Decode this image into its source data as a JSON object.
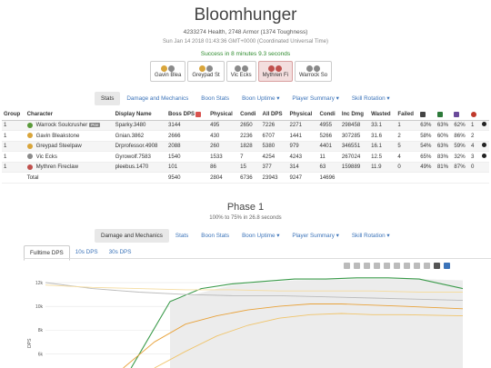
{
  "header": {
    "title": "Bloomhunger",
    "health_line": "4233274 Health, 2748 Armor (1374 Toughness)",
    "date_line": "Sun Jan 14 2018 01:43:36 GMT+0000 (Coordinated Universal Time)",
    "success_line": "Success in 8 minutes 9.3 seconds"
  },
  "players": [
    {
      "name": "Gavin Blea",
      "active": false
    },
    {
      "name": "Greypad St",
      "active": false
    },
    {
      "name": "Vic Ecks",
      "active": false
    },
    {
      "name": "Mythren Fi",
      "active": true
    },
    {
      "name": "Warrock So",
      "active": false
    }
  ],
  "top_tabs": [
    {
      "label": "Stats",
      "active": true
    },
    {
      "label": "Damage and Mechanics",
      "active": false
    },
    {
      "label": "Boon Stats",
      "active": false
    },
    {
      "label": "Boon Uptime ▾",
      "active": false
    },
    {
      "label": "Player Summary ▾",
      "active": false
    },
    {
      "label": "Skill Rotation ▾",
      "active": false
    }
  ],
  "stats_table": {
    "headers": [
      "Group",
      "Character",
      "Display Name",
      "Boss DPS",
      "Physical",
      "Condi",
      "All DPS",
      "Physical",
      "Condi",
      "Inc Dmg",
      "Wasted",
      "Failed"
    ],
    "rows": [
      {
        "group": "1",
        "character": "Warrock Soulcrusher",
        "tag": "Pov",
        "display": "Sparky.3480",
        "boss_dps": "3144",
        "phys": "495",
        "condi": "2650",
        "all_dps": "7226",
        "all_phys": "2271",
        "all_condi": "4955",
        "inc": "298458",
        "wasted": "33.1",
        "failed": "1",
        "p1": "63%",
        "p2": "63%",
        "p3": "62%",
        "deaths": "1",
        "dead": true,
        "color": "#5a9a3a"
      },
      {
        "group": "1",
        "character": "Gavin Bleakstone",
        "tag": "",
        "display": "Gnian.3862",
        "boss_dps": "2666",
        "phys": "430",
        "condi": "2236",
        "all_dps": "6707",
        "all_phys": "1441",
        "all_condi": "5266",
        "inc": "307285",
        "wasted": "31.6",
        "failed": "2",
        "p1": "58%",
        "p2": "60%",
        "p3": "86%",
        "deaths": "2",
        "dead": false,
        "color": "#d9a53a"
      },
      {
        "group": "1",
        "character": "Greypad Steelpaw",
        "tag": "",
        "display": "Drprofessor.4908",
        "boss_dps": "2088",
        "phys": "260",
        "condi": "1828",
        "all_dps": "5380",
        "all_phys": "979",
        "all_condi": "4401",
        "inc": "346551",
        "wasted": "16.1",
        "failed": "5",
        "p1": "54%",
        "p2": "63%",
        "p3": "59%",
        "deaths": "4",
        "dead": true,
        "color": "#d9a53a"
      },
      {
        "group": "1",
        "character": "Vic Ecks",
        "tag": "",
        "display": "Gyrowolf.7583",
        "boss_dps": "1540",
        "phys": "1533",
        "condi": "7",
        "all_dps": "4254",
        "all_phys": "4243",
        "all_condi": "11",
        "inc": "267024",
        "wasted": "12.5",
        "failed": "4",
        "p1": "65%",
        "p2": "83%",
        "p3": "32%",
        "deaths": "3",
        "dead": true,
        "color": "#8a8a8a"
      },
      {
        "group": "1",
        "character": "Mythren Fireclaw",
        "tag": "",
        "display": "pleebus.1470",
        "boss_dps": "101",
        "phys": "86",
        "condi": "15",
        "all_dps": "377",
        "all_phys": "314",
        "all_condi": "63",
        "inc": "159889",
        "wasted": "11.9",
        "failed": "0",
        "p1": "49%",
        "p2": "81%",
        "p3": "87%",
        "deaths": "0",
        "dead": false,
        "color": "#c0504d"
      }
    ],
    "total": {
      "label": "Total",
      "boss_dps": "9540",
      "phys": "2804",
      "condi": "6736",
      "all_dps": "23943",
      "all_phys": "9247",
      "all_condi": "14696"
    }
  },
  "phase": {
    "title": "Phase 1",
    "subtitle": "100% to 75% in 26.8 seconds"
  },
  "phase_tabs": [
    {
      "label": "Damage and Mechanics",
      "active": true
    },
    {
      "label": "Stats",
      "active": false
    },
    {
      "label": "Boon Stats",
      "active": false
    },
    {
      "label": "Boon Uptime ▾",
      "active": false
    },
    {
      "label": "Player Summary ▾",
      "active": false
    },
    {
      "label": "Skill Rotation ▾",
      "active": false
    }
  ],
  "dps_tabs": [
    {
      "label": "Fulltime DPS",
      "active": true
    },
    {
      "label": "10s DPS",
      "active": false
    },
    {
      "label": "30s DPS",
      "active": false
    }
  ],
  "chart_data": {
    "type": "line",
    "ylabel": "DPS",
    "yticks": [
      "12k",
      "10k",
      "8k",
      "6k"
    ],
    "ylim": [
      4800,
      13000
    ],
    "xlim": [
      0,
      26.8
    ],
    "series": [
      {
        "color": "#3a9a4a",
        "x": [
          5.5,
          8,
          10,
          12,
          14,
          16,
          18,
          20,
          22,
          24,
          26.8
        ],
        "y": [
          4800,
          10400,
          11500,
          11900,
          12100,
          12300,
          12300,
          12400,
          12400,
          12300,
          11500
        ]
      },
      {
        "color": "#e8a23a",
        "x": [
          5,
          7,
          9,
          11,
          13,
          15,
          17,
          19,
          21,
          23,
          26.8
        ],
        "y": [
          4800,
          7000,
          8500,
          9200,
          9700,
          10000,
          10200,
          10200,
          10100,
          10000,
          9800
        ]
      },
      {
        "color": "#f0c46a",
        "x": [
          7,
          9,
          11,
          13,
          15,
          17,
          19,
          21,
          23,
          26.8
        ],
        "y": [
          4800,
          6200,
          7500,
          8400,
          9000,
          9300,
          9400,
          9300,
          9300,
          9200
        ]
      },
      {
        "color": "#bbbbbb",
        "x": [
          0,
          3,
          6,
          9,
          12,
          15,
          18,
          21,
          24,
          26.8
        ],
        "y": [
          12000,
          11500,
          11200,
          11000,
          10900,
          10900,
          10800,
          10700,
          10600,
          10500
        ]
      },
      {
        "color": "#f5dca0",
        "x": [
          0,
          3,
          6,
          9,
          12,
          15,
          18,
          21,
          24,
          26.8
        ],
        "y": [
          11800,
          11600,
          11500,
          11400,
          11400,
          11300,
          11300,
          11300,
          11200,
          11200
        ]
      }
    ],
    "boss_health_area": {
      "x": [
        8,
        12,
        16,
        20,
        24,
        26.8
      ],
      "y": [
        10500,
        11800,
        12200,
        12300,
        12300,
        12200
      ]
    }
  }
}
